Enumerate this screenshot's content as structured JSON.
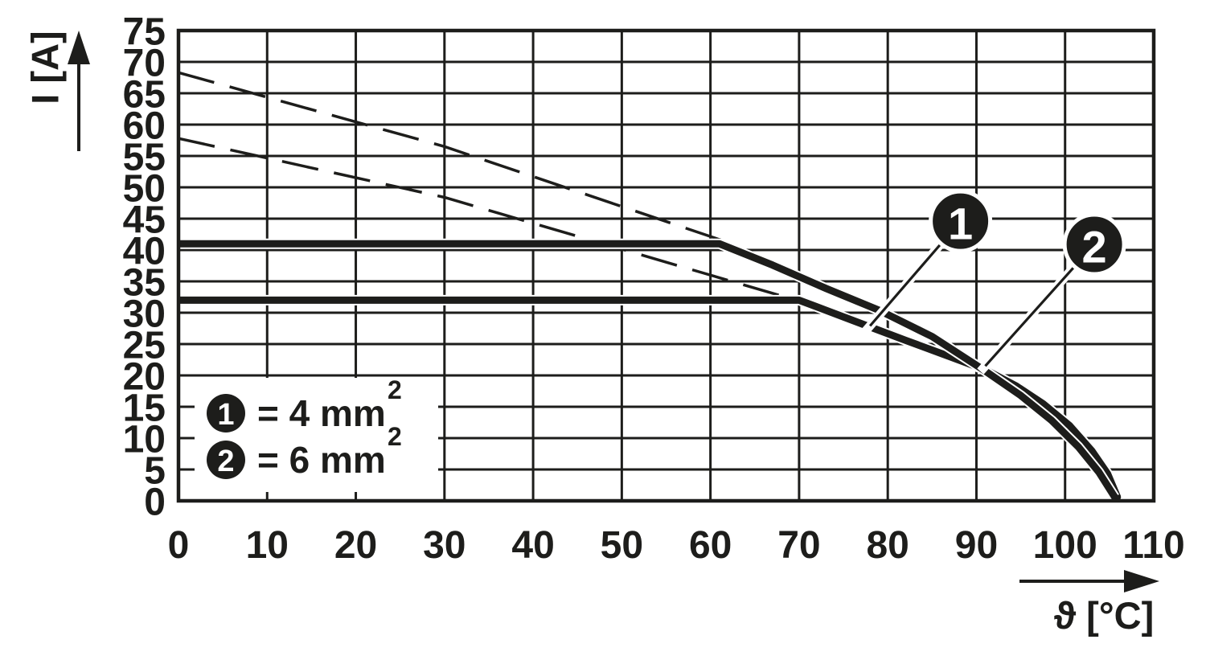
{
  "chart_data": {
    "type": "line",
    "title": "",
    "x_axis": {
      "label": "ϑ [°C]",
      "min": 0,
      "max": 110,
      "tick_step": 10,
      "ticks": [
        0,
        10,
        20,
        30,
        40,
        50,
        60,
        70,
        80,
        90,
        100,
        110
      ]
    },
    "y_axis": {
      "label": "I [A]",
      "min": 0,
      "max": 75,
      "tick_step": 5,
      "ticks": [
        0,
        5,
        10,
        15,
        20,
        25,
        30,
        35,
        40,
        45,
        50,
        55,
        60,
        65,
        70,
        75
      ]
    },
    "grid": true,
    "legend_position": "bottom-left-inside",
    "series": [
      {
        "id": "curve-1-4mm2",
        "callout": "1",
        "cross_section": "4 mm²",
        "style": "solid",
        "flat_current_A": 32,
        "derating_start_C": 70,
        "points": [
          [
            0,
            32
          ],
          [
            70,
            32
          ],
          [
            76,
            28.8
          ],
          [
            82,
            25.6
          ],
          [
            87,
            23
          ],
          [
            91,
            20.9
          ],
          [
            94.5,
            18.3
          ],
          [
            97.5,
            15.5
          ],
          [
            100.5,
            12
          ],
          [
            103,
            8
          ],
          [
            104.8,
            4.3
          ],
          [
            105.9,
            0.6
          ]
        ]
      },
      {
        "id": "curve-2-6mm2",
        "callout": "2",
        "cross_section": "6 mm²",
        "style": "solid",
        "flat_current_A": 41,
        "derating_start_C": 61,
        "points": [
          [
            0,
            41
          ],
          [
            61,
            41
          ],
          [
            67,
            37.6
          ],
          [
            73,
            33.9
          ],
          [
            79,
            30.4
          ],
          [
            85,
            26.2
          ],
          [
            91,
            20.7
          ],
          [
            95,
            16.8
          ],
          [
            98.5,
            12.8
          ],
          [
            101.5,
            8.6
          ],
          [
            103.8,
            4.6
          ],
          [
            105.6,
            0.6
          ]
        ]
      },
      {
        "id": "dashed-limit-6mm2",
        "style": "dashed",
        "points": [
          [
            0,
            68.3
          ],
          [
            30,
            56.5
          ],
          [
            62,
            41.2
          ]
        ]
      },
      {
        "id": "dashed-limit-4mm2",
        "style": "dashed",
        "points": [
          [
            0,
            57.8
          ],
          [
            30,
            48.4
          ],
          [
            74.5,
            30.0
          ]
        ]
      }
    ],
    "legend": {
      "entries": [
        {
          "marker": "1",
          "text": "= 4 mm",
          "exponent": "2"
        },
        {
          "marker": "2",
          "text": "= 6 mm",
          "exponent": "2"
        }
      ]
    },
    "callouts": [
      {
        "label": "1",
        "circle": [
          88.2,
          44.6
        ],
        "tip": [
          78.0,
          27.9
        ]
      },
      {
        "label": "2",
        "circle": [
          103.3,
          40.9
        ],
        "tip": [
          91.0,
          21.5
        ]
      }
    ],
    "colors": {
      "ink": "#1d1d1b",
      "background": "#ffffff"
    }
  }
}
